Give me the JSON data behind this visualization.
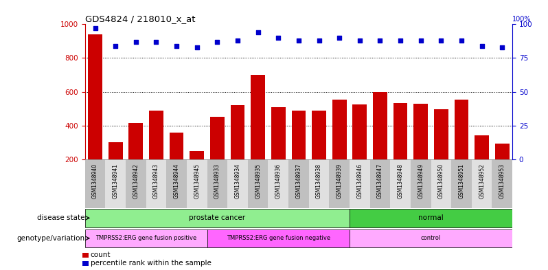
{
  "title": "GDS4824 / 218010_x_at",
  "samples": [
    "GSM1348940",
    "GSM1348941",
    "GSM1348942",
    "GSM1348943",
    "GSM1348944",
    "GSM1348945",
    "GSM1348933",
    "GSM1348934",
    "GSM1348935",
    "GSM1348936",
    "GSM1348937",
    "GSM1348938",
    "GSM1348939",
    "GSM1348946",
    "GSM1348947",
    "GSM1348948",
    "GSM1348949",
    "GSM1348950",
    "GSM1348951",
    "GSM1348952",
    "GSM1348953"
  ],
  "counts": [
    940,
    300,
    415,
    490,
    360,
    248,
    450,
    520,
    700,
    510,
    490,
    490,
    555,
    525,
    600,
    535,
    530,
    495,
    555,
    340,
    293
  ],
  "percentiles": [
    97,
    84,
    87,
    87,
    84,
    83,
    87,
    88,
    94,
    90,
    88,
    88,
    90,
    88,
    88,
    88,
    88,
    88,
    88,
    84,
    83
  ],
  "disease_state_groups": [
    {
      "label": "prostate cancer",
      "start": 0,
      "end": 12,
      "color": "#90EE90"
    },
    {
      "label": "normal",
      "start": 13,
      "end": 20,
      "color": "#44CC44"
    }
  ],
  "genotype_groups": [
    {
      "label": "TMPRSS2:ERG gene fusion positive",
      "start": 0,
      "end": 5,
      "color": "#FFAAFF"
    },
    {
      "label": "TMPRSS2:ERG gene fusion negative",
      "start": 6,
      "end": 12,
      "color": "#FF66FF"
    },
    {
      "label": "control",
      "start": 13,
      "end": 20,
      "color": "#FFAAFF"
    }
  ],
  "bar_color": "#CC0000",
  "dot_color": "#0000CC",
  "ylim_left": [
    200,
    1000
  ],
  "ylim_right": [
    0,
    100
  ],
  "yticks_left": [
    200,
    400,
    600,
    800,
    1000
  ],
  "yticks_right": [
    0,
    25,
    50,
    75,
    100
  ],
  "grid_values": [
    400,
    600,
    800
  ],
  "background_color": "#ffffff",
  "tick_bg_colors": [
    "#C0C0C0",
    "#E0E0E0"
  ],
  "label_count": "count",
  "label_percentile": "percentile rank within the sample",
  "label_disease_state": "disease state",
  "label_genotype": "genotype/variation"
}
